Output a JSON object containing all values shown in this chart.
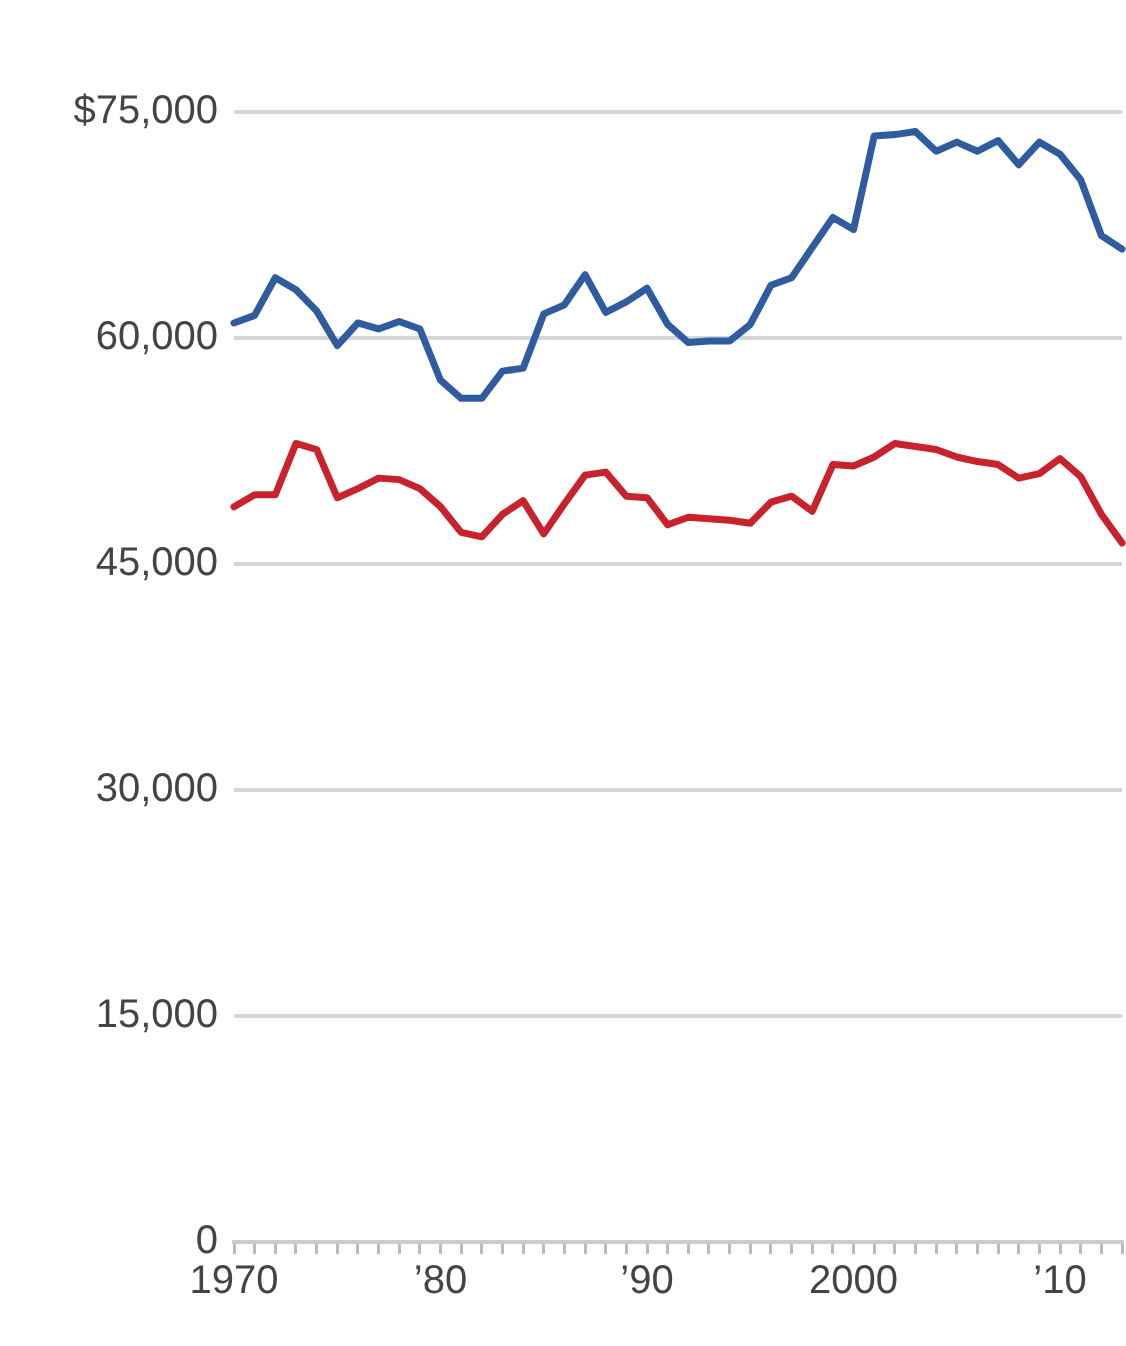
{
  "chart_data": {
    "type": "line",
    "x": [
      1970,
      1971,
      1972,
      1973,
      1974,
      1975,
      1976,
      1977,
      1978,
      1979,
      1980,
      1981,
      1982,
      1983,
      1984,
      1985,
      1986,
      1987,
      1988,
      1989,
      1990,
      1991,
      1992,
      1993,
      1994,
      1995,
      1996,
      1997,
      1998,
      1999,
      2000,
      2001,
      2002,
      2003,
      2004,
      2005,
      2006,
      2007,
      2008,
      2009,
      2010,
      2011,
      2012,
      2013
    ],
    "series": [
      {
        "color": "#2e5c9e",
        "values": [
          61000,
          61500,
          64000,
          63200,
          61800,
          59500,
          61000,
          60600,
          61100,
          60600,
          57200,
          56000,
          56000,
          57800,
          58000,
          61600,
          62200,
          64200,
          61700,
          62400,
          63300,
          60900,
          59700,
          59800,
          59800,
          60900,
          63500,
          64000,
          66000,
          68000,
          67200,
          73400,
          73500,
          73700,
          72400,
          73000,
          72400,
          73100,
          71500,
          73000,
          72200,
          70500,
          66800,
          65900
        ]
      },
      {
        "color": "#c8232c",
        "values": [
          48800,
          49600,
          49600,
          53000,
          52600,
          49400,
          50000,
          50700,
          50600,
          50000,
          48800,
          47100,
          46800,
          48300,
          49200,
          47000,
          49000,
          50900,
          51100,
          49500,
          49400,
          47600,
          48100,
          48000,
          47900,
          47700,
          49100,
          49500,
          48500,
          51600,
          51500,
          52100,
          53000,
          52800,
          52600,
          52100,
          51800,
          51600,
          50700,
          51000,
          52000,
          50800,
          48300,
          46400
        ]
      }
    ],
    "xlim": [
      1970,
      2013
    ],
    "xticks": [
      {
        "value": 1970,
        "label": "1970"
      },
      {
        "value": 1971,
        "label": null
      },
      {
        "value": 1972,
        "label": null
      },
      {
        "value": 1973,
        "label": null
      },
      {
        "value": 1974,
        "label": null
      },
      {
        "value": 1975,
        "label": null
      },
      {
        "value": 1976,
        "label": null
      },
      {
        "value": 1977,
        "label": null
      },
      {
        "value": 1978,
        "label": null
      },
      {
        "value": 1979,
        "label": null
      },
      {
        "value": 1980,
        "label": "’80"
      },
      {
        "value": 1981,
        "label": null
      },
      {
        "value": 1982,
        "label": null
      },
      {
        "value": 1983,
        "label": null
      },
      {
        "value": 1984,
        "label": null
      },
      {
        "value": 1985,
        "label": null
      },
      {
        "value": 1986,
        "label": null
      },
      {
        "value": 1987,
        "label": null
      },
      {
        "value": 1988,
        "label": null
      },
      {
        "value": 1989,
        "label": null
      },
      {
        "value": 1990,
        "label": "’90"
      },
      {
        "value": 1991,
        "label": null
      },
      {
        "value": 1992,
        "label": null
      },
      {
        "value": 1993,
        "label": null
      },
      {
        "value": 1994,
        "label": null
      },
      {
        "value": 1995,
        "label": null
      },
      {
        "value": 1996,
        "label": null
      },
      {
        "value": 1997,
        "label": null
      },
      {
        "value": 1998,
        "label": null
      },
      {
        "value": 1999,
        "label": null
      },
      {
        "value": 2000,
        "label": "2000"
      },
      {
        "value": 2001,
        "label": null
      },
      {
        "value": 2002,
        "label": null
      },
      {
        "value": 2003,
        "label": null
      },
      {
        "value": 2004,
        "label": null
      },
      {
        "value": 2005,
        "label": null
      },
      {
        "value": 2006,
        "label": null
      },
      {
        "value": 2007,
        "label": null
      },
      {
        "value": 2008,
        "label": null
      },
      {
        "value": 2009,
        "label": null
      },
      {
        "value": 2010,
        "label": "’10"
      },
      {
        "value": 2011,
        "label": null
      },
      {
        "value": 2012,
        "label": null
      },
      {
        "value": 2013,
        "label": null
      }
    ],
    "ylim": [
      0,
      75000
    ],
    "yticks": [
      0,
      {
        "value": 15000,
        "label": "15,000"
      },
      {
        "value": 30000,
        "label": "30,000"
      },
      {
        "value": 45000,
        "label": "45,000"
      },
      {
        "value": 60000,
        "label": "60,000"
      },
      {
        "value": 75000,
        "label": "$75,000"
      }
    ],
    "grid": "y",
    "legend": false,
    "marker": "none",
    "line_style": "solid"
  }
}
